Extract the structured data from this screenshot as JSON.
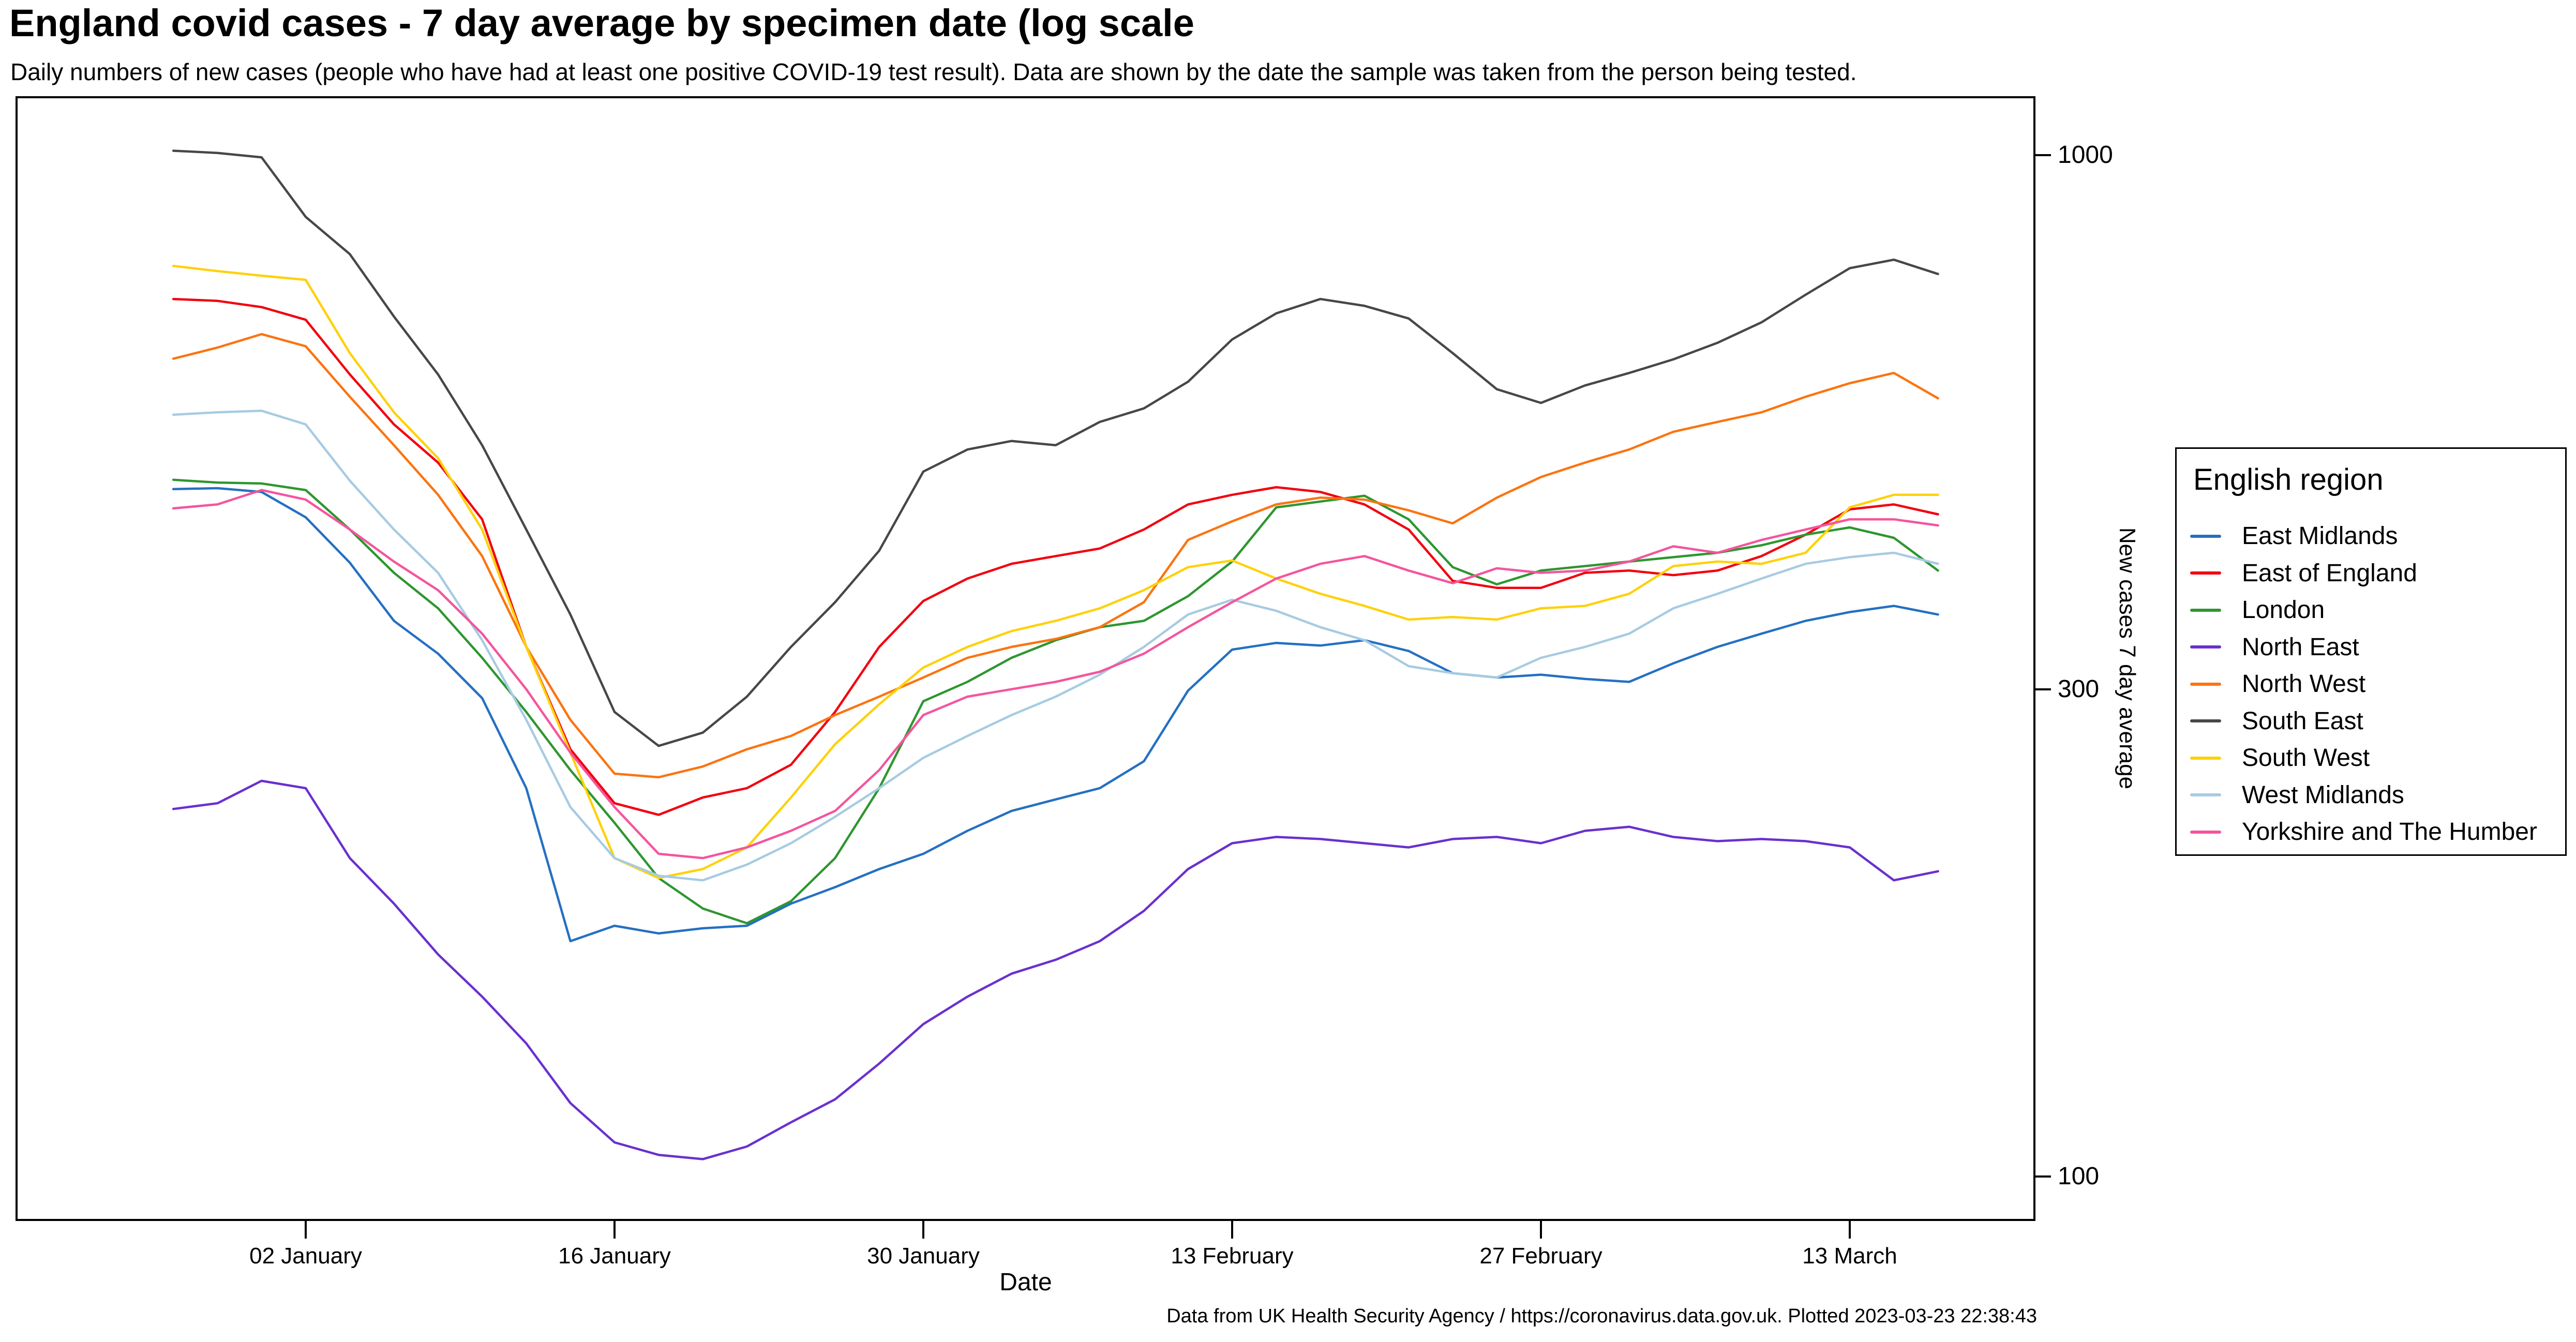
{
  "header": {
    "title": "England covid cases - 7 day average by specimen date (log scale",
    "subtitle": "Daily numbers of new cases (people who have had at least one positive COVID-19 test result). Data are shown by the date the sample was taken from the person being tested."
  },
  "x_axis": {
    "label": "Date",
    "ticks": [
      {
        "label": "02 January",
        "day": 6
      },
      {
        "label": "16 January",
        "day": 20
      },
      {
        "label": "30 January",
        "day": 34
      },
      {
        "label": "13 February",
        "day": 48
      },
      {
        "label": "27 February",
        "day": 62
      },
      {
        "label": "13 March",
        "day": 76
      }
    ]
  },
  "y_axis": {
    "label": "New cases 7 day average",
    "scale": "log10",
    "ticks": [
      {
        "label": "1000",
        "value": 1000
      },
      {
        "label": "300",
        "value": 300
      },
      {
        "label": "100",
        "value": 100
      }
    ]
  },
  "legend": {
    "title": "English region",
    "items": [
      {
        "label": "East Midlands",
        "color": "#2470c2"
      },
      {
        "label": "East of England",
        "color": "#f2000f"
      },
      {
        "label": "London",
        "color": "#2e9630"
      },
      {
        "label": "North East",
        "color": "#6a30ce"
      },
      {
        "label": "North West",
        "color": "#fb7410"
      },
      {
        "label": "South East",
        "color": "#474747"
      },
      {
        "label": "South West",
        "color": "#fed10a"
      },
      {
        "label": "West Midlands",
        "color": "#a7cbe2"
      },
      {
        "label": "Yorkshire and The Humber",
        "color": "#f4559d"
      }
    ]
  },
  "footer": {
    "credit": "Data from UK Health Security Agency / https://coronavirus.data.gov.uk. Plotted 2023-03-23 22:38:43"
  },
  "chart_data": {
    "type": "line",
    "title": "England covid cases - 7 day average by specimen date (log scale",
    "xlabel": "Date",
    "ylabel": "New cases 7 day average",
    "y_scale": "log",
    "ylim": [
      90,
      1150
    ],
    "grid": false,
    "legend_position": "right",
    "x_start_date": "2022-12-27",
    "x_end_date": "2023-03-17",
    "x_step_days": 2,
    "dates": [
      "2022-12-27",
      "2022-12-29",
      "2022-12-31",
      "2023-01-02",
      "2023-01-04",
      "2023-01-06",
      "2023-01-08",
      "2023-01-10",
      "2023-01-12",
      "2023-01-14",
      "2023-01-16",
      "2023-01-18",
      "2023-01-20",
      "2023-01-22",
      "2023-01-24",
      "2023-01-26",
      "2023-01-28",
      "2023-01-30",
      "2023-02-01",
      "2023-02-03",
      "2023-02-05",
      "2023-02-07",
      "2023-02-09",
      "2023-02-11",
      "2023-02-13",
      "2023-02-15",
      "2023-02-17",
      "2023-02-19",
      "2023-02-21",
      "2023-02-23",
      "2023-02-25",
      "2023-02-27",
      "2023-03-01",
      "2023-03-03",
      "2023-03-05",
      "2023-03-07",
      "2023-03-09",
      "2023-03-11",
      "2023-03-13",
      "2023-03-15",
      "2023-03-17"
    ],
    "series": [
      {
        "name": "East Midlands",
        "color": "#2470c2",
        "values": [
          471,
          472,
          468,
          442,
          399,
          350,
          325,
          294,
          240,
          170,
          176,
          173,
          175,
          176,
          185,
          192,
          200,
          207,
          218,
          228,
          234,
          240,
          255,
          299,
          328,
          333,
          331,
          335,
          327,
          311,
          308,
          310,
          307,
          305,
          318,
          330,
          340,
          350,
          357,
          362,
          355
        ]
      },
      {
        "name": "East of England",
        "color": "#f2000f",
        "values": [
          723,
          720,
          710,
          690,
          610,
          545,
          500,
          440,
          330,
          262,
          232,
          226,
          235,
          240,
          253,
          285,
          330,
          366,
          385,
          398,
          405,
          412,
          430,
          455,
          465,
          473,
          468,
          455,
          430,
          383,
          377,
          377,
          390,
          392,
          388,
          392,
          405,
          425,
          450,
          455,
          445
        ]
      },
      {
        "name": "London",
        "color": "#2e9630",
        "values": [
          481,
          478,
          477,
          470,
          430,
          390,
          360,
          322,
          285,
          250,
          222,
          196,
          183,
          177,
          186,
          205,
          240,
          292,
          305,
          322,
          335,
          345,
          350,
          370,
          400,
          452,
          458,
          464,
          440,
          395,
          380,
          392,
          396,
          400,
          404,
          408,
          415,
          425,
          432,
          422,
          392
        ]
      },
      {
        "name": "North East",
        "color": "#6a30ce",
        "values": [
          229,
          232,
          244,
          240,
          205,
          185,
          165,
          150,
          135,
          118,
          108,
          105,
          104,
          107,
          113,
          119,
          129,
          141,
          150,
          158,
          163,
          170,
          182,
          200,
          212,
          215,
          214,
          212,
          210,
          214,
          215,
          212,
          218,
          220,
          215,
          213,
          214,
          213,
          210,
          195,
          199
        ]
      },
      {
        "name": "North West",
        "color": "#fb7410",
        "values": [
          632,
          648,
          668,
          650,
          580,
          520,
          465,
          405,
          330,
          280,
          248,
          246,
          252,
          262,
          270,
          283,
          295,
          308,
          322,
          330,
          336,
          345,
          365,
          420,
          438,
          455,
          462,
          460,
          449,
          436,
          462,
          484,
          500,
          515,
          536,
          548,
          560,
          580,
          598,
          612,
          578
        ]
      },
      {
        "name": "South East",
        "color": "#474747",
        "values": [
          1010,
          1005,
          995,
          870,
          800,
          695,
          610,
          520,
          430,
          355,
          285,
          264,
          272,
          295,
          330,
          365,
          410,
          490,
          515,
          525,
          520,
          548,
          565,
          600,
          660,
          700,
          723,
          712,
          692,
          640,
          590,
          572,
          595,
          612,
          631,
          655,
          686,
          730,
          775,
          790,
          765
        ]
      },
      {
        "name": "South West",
        "color": "#fed10a",
        "values": [
          779,
          770,
          762,
          755,
          640,
          560,
          505,
          430,
          330,
          260,
          205,
          196,
          200,
          210,
          235,
          265,
          290,
          315,
          330,
          342,
          350,
          360,
          375,
          395,
          401,
          385,
          372,
          362,
          351,
          353,
          351,
          360,
          362,
          372,
          396,
          400,
          398,
          408,
          452,
          465,
          465
        ]
      },
      {
        "name": "West Midlands",
        "color": "#a7cbe2",
        "values": [
          557,
          560,
          562,
          545,
          480,
          430,
          390,
          335,
          280,
          230,
          205,
          197,
          195,
          202,
          212,
          225,
          240,
          257,
          270,
          283,
          295,
          310,
          330,
          355,
          367,
          358,
          345,
          335,
          316,
          311,
          308,
          322,
          330,
          340,
          360,
          372,
          385,
          398,
          404,
          408,
          398
        ]
      },
      {
        "name": "Yorkshire and The Humber",
        "color": "#f4559d",
        "values": [
          451,
          455,
          470,
          460,
          430,
          400,
          375,
          340,
          300,
          260,
          230,
          207,
          205,
          210,
          218,
          228,
          250,
          283,
          295,
          300,
          305,
          312,
          325,
          345,
          365,
          385,
          398,
          405,
          392,
          381,
          394,
          390,
          392,
          400,
          414,
          408,
          420,
          430,
          440,
          440,
          434
        ]
      }
    ]
  }
}
